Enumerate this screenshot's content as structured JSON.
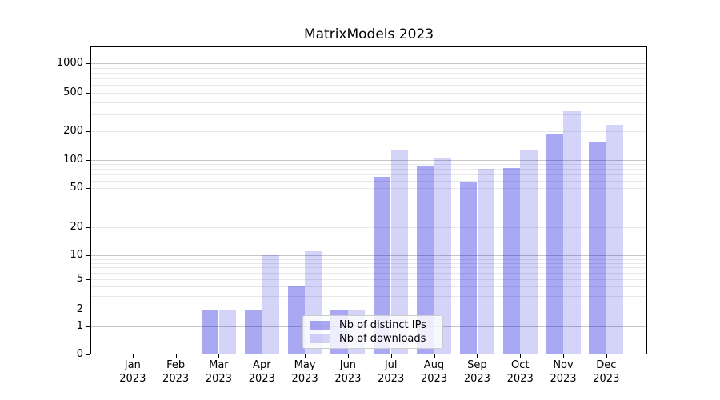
{
  "chart_data": {
    "type": "bar",
    "title": "MatrixModels 2023",
    "categories": [
      "Jan",
      "Feb",
      "Mar",
      "Apr",
      "May",
      "Jun",
      "Jul",
      "Aug",
      "Sep",
      "Oct",
      "Nov",
      "Dec"
    ],
    "year_label": "2023",
    "series": [
      {
        "name": "Nb of distinct IPs",
        "color": "#0000dd",
        "alpha": 0.34,
        "values": [
          0,
          0,
          2,
          2,
          4,
          2,
          66,
          85,
          57,
          82,
          185,
          157
        ]
      },
      {
        "name": "Nb of downloads",
        "color": "#0000dd",
        "alpha": 0.17,
        "values": [
          0,
          0,
          2,
          10,
          11,
          2,
          125,
          107,
          80,
          127,
          320,
          235
        ]
      }
    ],
    "yticks": [
      0,
      1,
      2,
      5,
      10,
      20,
      50,
      100,
      200,
      500,
      1000
    ],
    "ylim": [
      0,
      1500
    ],
    "yscale": "symlog",
    "xlabel": "",
    "ylabel": "",
    "grid": true,
    "legend_position": "lower center",
    "colors": {
      "grid_minor": "#e8e8e8",
      "grid_major": "#c6c6c6",
      "axis": "#000000",
      "background": "#ffffff"
    }
  }
}
